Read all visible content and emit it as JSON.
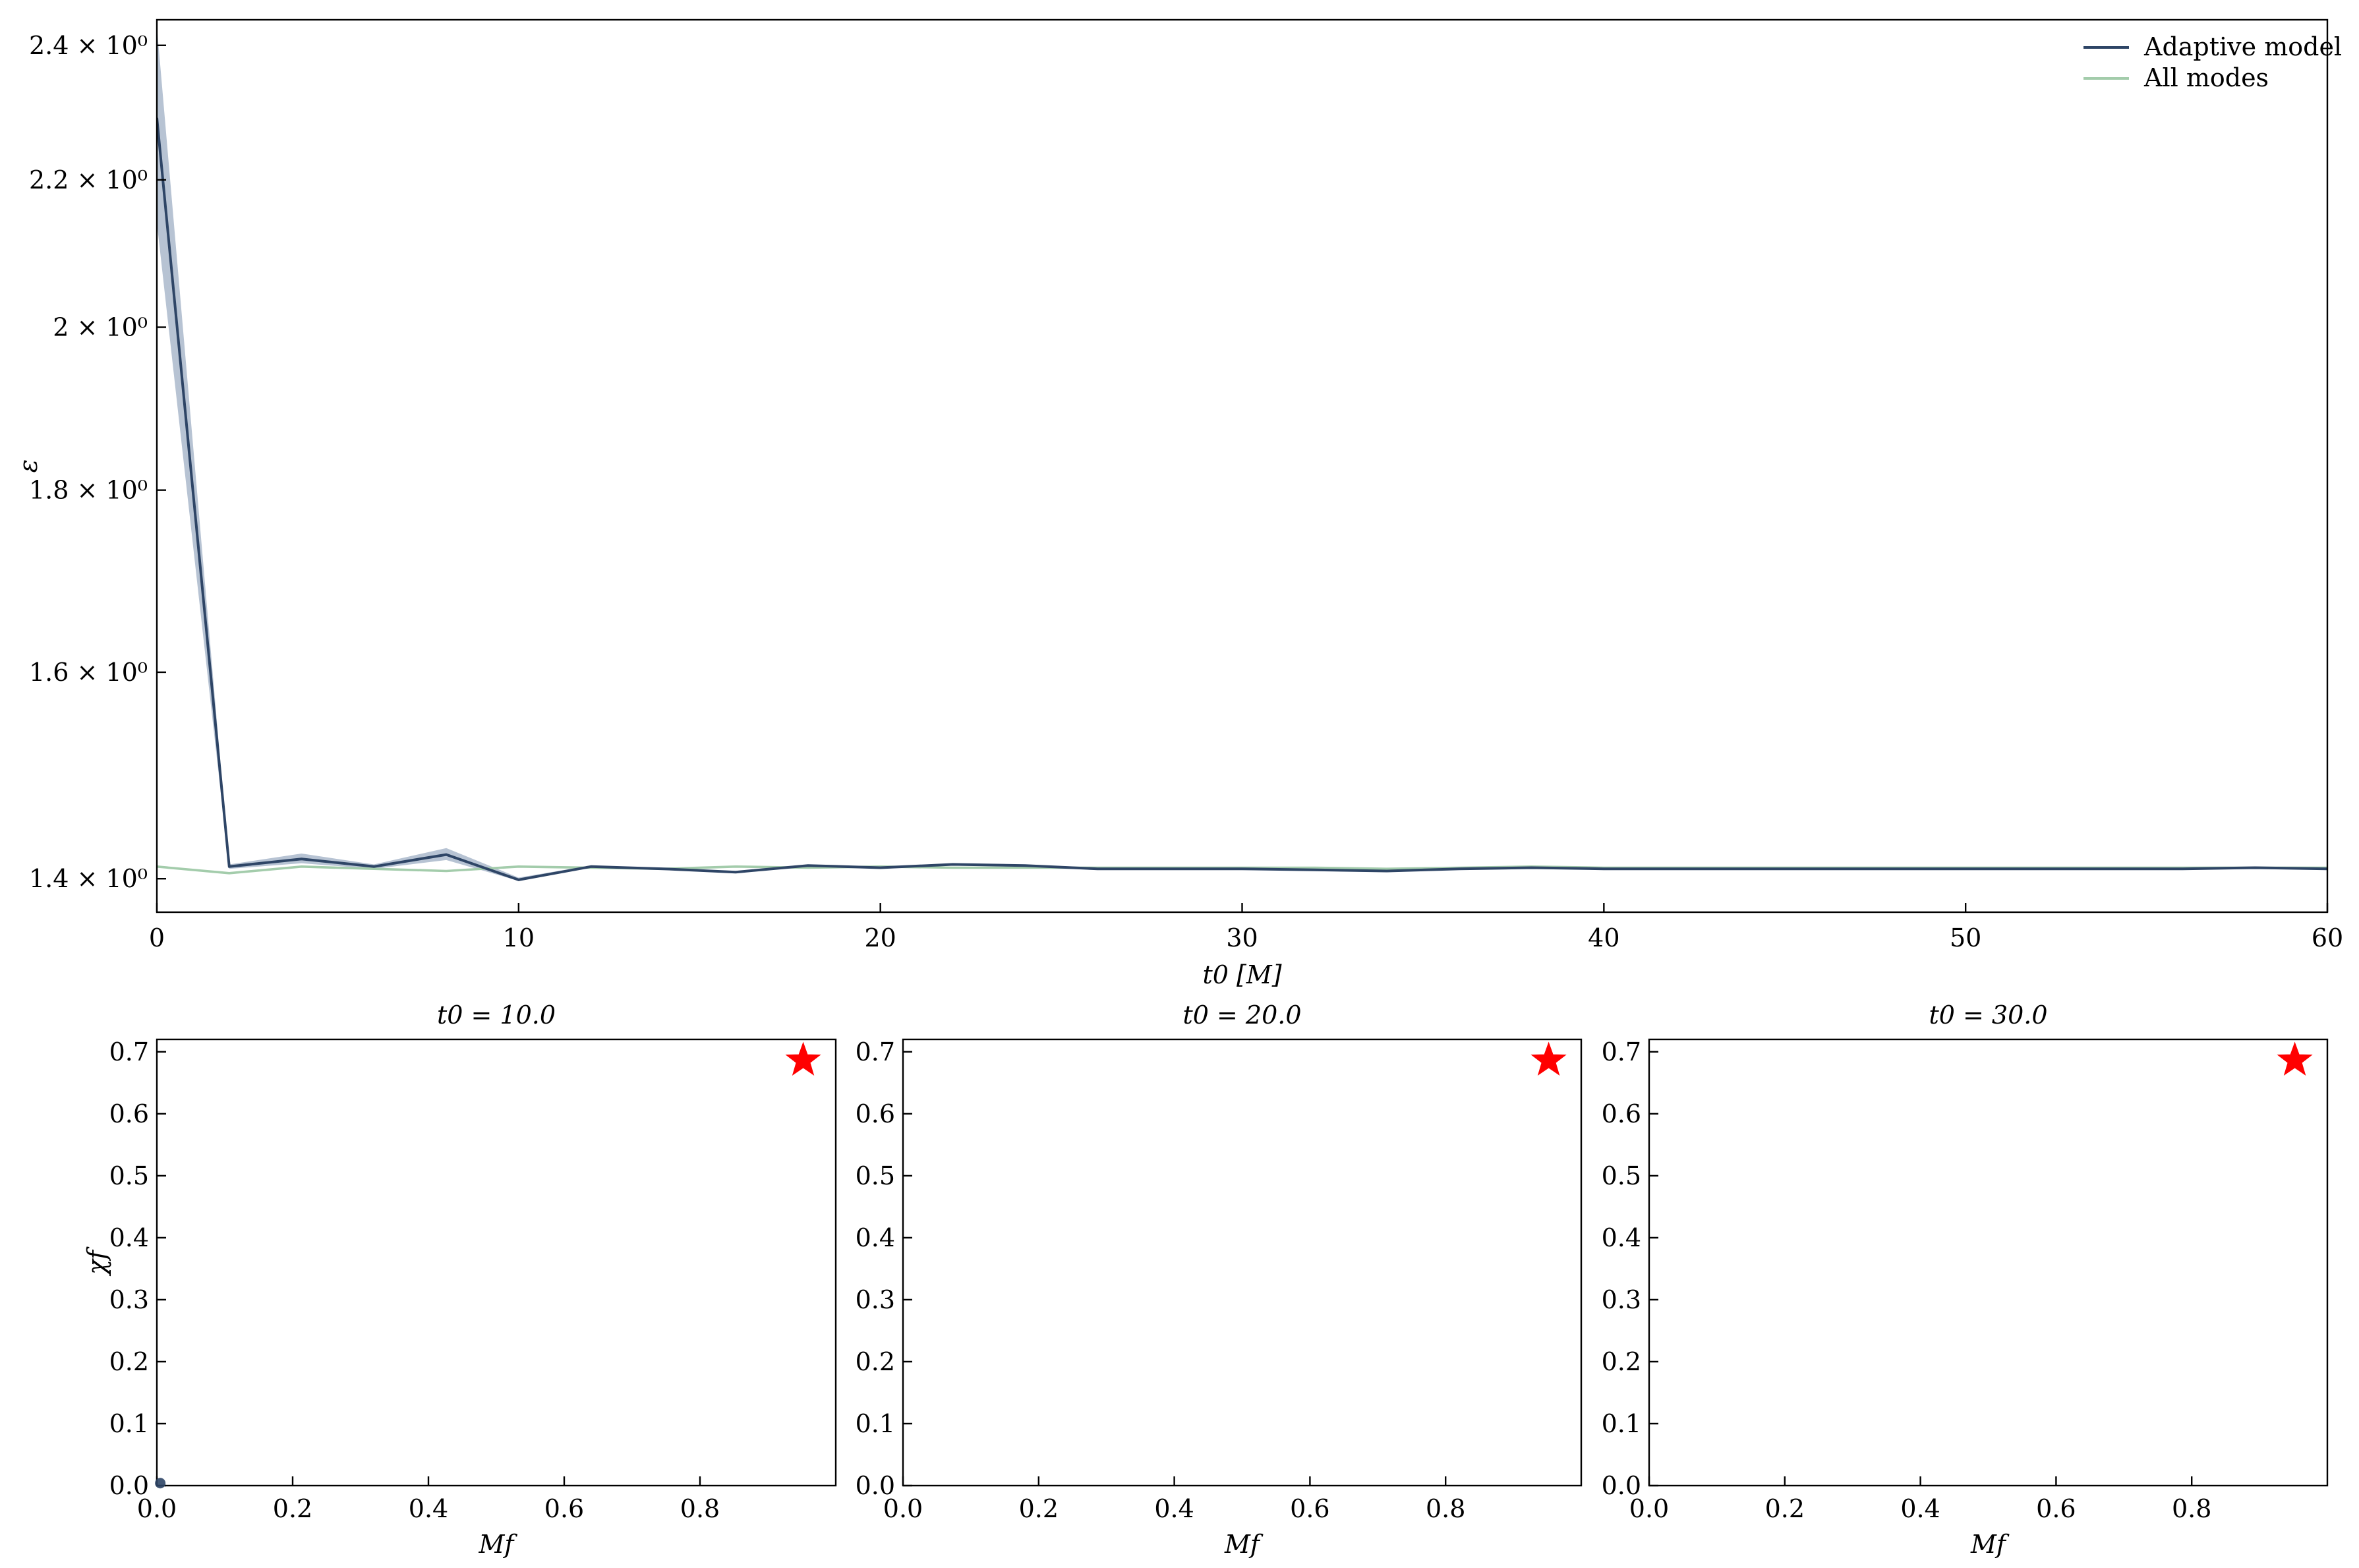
{
  "chart_data": [
    {
      "type": "line",
      "xlabel": "t0 [M]",
      "ylabel": "ε",
      "xlim": [
        0,
        60
      ],
      "ylim": [
        1.37,
        2.44
      ],
      "yscale": "log",
      "grid": false,
      "legend_position": "top-right",
      "xticks": [
        0,
        10,
        20,
        30,
        40,
        50,
        60
      ],
      "xtick_labels": [
        "0",
        "10",
        "20",
        "30",
        "40",
        "50",
        "60"
      ],
      "yticks": [
        1.4,
        1.6,
        1.8,
        2.0,
        2.2,
        2.4
      ],
      "ytick_labels": [
        "1.4 × 10⁰",
        "1.6 × 10⁰",
        "1.8 × 10⁰",
        "2 × 10⁰",
        "2.2 × 10⁰",
        "2.4 × 10⁰"
      ],
      "x": [
        0,
        2,
        4,
        6,
        8,
        10,
        12,
        14,
        16,
        18,
        20,
        22,
        24,
        26,
        28,
        30,
        32,
        34,
        36,
        38,
        40,
        42,
        44,
        46,
        48,
        50,
        52,
        54,
        56,
        58,
        60
      ],
      "series": [
        {
          "name": "Adaptive model",
          "color": "#2e4566",
          "band_color": "#9fafc4",
          "values": [
            2.29,
            1.411,
            1.418,
            1.411,
            1.422,
            1.399,
            1.411,
            1.409,
            1.406,
            1.412,
            1.41,
            1.413,
            1.412,
            1.409,
            1.409,
            1.409,
            1.408,
            1.407,
            1.409,
            1.41,
            1.409,
            1.409,
            1.409,
            1.409,
            1.409,
            1.409,
            1.409,
            1.409,
            1.409,
            1.41,
            1.409
          ],
          "lower": [
            2.14,
            1.409,
            1.414,
            1.409,
            1.417,
            1.398,
            1.41,
            1.408,
            1.405,
            1.411,
            1.409,
            1.412,
            1.411,
            1.408,
            1.408,
            1.408,
            1.407,
            1.406,
            1.408,
            1.409,
            1.408,
            1.408,
            1.408,
            1.408,
            1.408,
            1.408,
            1.408,
            1.408,
            1.408,
            1.409,
            1.408
          ],
          "upper": [
            2.43,
            1.413,
            1.423,
            1.413,
            1.428,
            1.401,
            1.412,
            1.41,
            1.407,
            1.413,
            1.411,
            1.414,
            1.413,
            1.41,
            1.41,
            1.41,
            1.409,
            1.408,
            1.41,
            1.411,
            1.41,
            1.41,
            1.41,
            1.41,
            1.41,
            1.41,
            1.41,
            1.41,
            1.41,
            1.411,
            1.41
          ]
        },
        {
          "name": "All modes",
          "color": "#a3ccab",
          "values": [
            1.411,
            1.405,
            1.411,
            1.409,
            1.407,
            1.411,
            1.41,
            1.409,
            1.411,
            1.41,
            1.411,
            1.41,
            1.41,
            1.41,
            1.41,
            1.41,
            1.41,
            1.409,
            1.41,
            1.411,
            1.41,
            1.41,
            1.41,
            1.41,
            1.41,
            1.41,
            1.41,
            1.41,
            1.41,
            1.41,
            1.41
          ]
        }
      ]
    },
    {
      "type": "scatter",
      "title": "t0 = 10.0",
      "xlabel": "Mf",
      "ylabel": "χf",
      "xlim": [
        0,
        1.0
      ],
      "ylim": [
        0,
        0.72
      ],
      "xticks": [
        0,
        0.2,
        0.4,
        0.6,
        0.8
      ],
      "xtick_labels": [
        "0.0",
        "0.2",
        "0.4",
        "0.6",
        "0.8"
      ],
      "yticks": [
        0,
        0.1,
        0.2,
        0.3,
        0.4,
        0.5,
        0.6,
        0.7
      ],
      "ytick_labels": [
        "0.0",
        "0.1",
        "0.2",
        "0.3",
        "0.4",
        "0.5",
        "0.6",
        "0.7"
      ],
      "points": [
        {
          "x": 0.005,
          "y": 0.004,
          "color": "#2e4566"
        }
      ],
      "true_value": {
        "x": 0.952,
        "y": 0.686,
        "color": "#ff0000",
        "marker": "star"
      }
    },
    {
      "type": "scatter",
      "title": "t0 = 20.0",
      "xlabel": "Mf",
      "ylabel": "",
      "xlim": [
        0,
        1.0
      ],
      "ylim": [
        0,
        0.72
      ],
      "xticks": [
        0,
        0.2,
        0.4,
        0.6,
        0.8
      ],
      "xtick_labels": [
        "0.0",
        "0.2",
        "0.4",
        "0.6",
        "0.8"
      ],
      "yticks": [
        0,
        0.1,
        0.2,
        0.3,
        0.4,
        0.5,
        0.6,
        0.7
      ],
      "ytick_labels": [
        "0.0",
        "0.1",
        "0.2",
        "0.3",
        "0.4",
        "0.5",
        "0.6",
        "0.7"
      ],
      "points": [],
      "true_value": {
        "x": 0.952,
        "y": 0.686,
        "color": "#ff0000",
        "marker": "star"
      }
    },
    {
      "type": "scatter",
      "title": "t0 = 30.0",
      "xlabel": "Mf",
      "ylabel": "",
      "xlim": [
        0,
        1.0
      ],
      "ylim": [
        0,
        0.72
      ],
      "xticks": [
        0,
        0.2,
        0.4,
        0.6,
        0.8
      ],
      "xtick_labels": [
        "0.0",
        "0.2",
        "0.4",
        "0.6",
        "0.8"
      ],
      "yticks": [
        0,
        0.1,
        0.2,
        0.3,
        0.4,
        0.5,
        0.6,
        0.7
      ],
      "ytick_labels": [
        "0.0",
        "0.1",
        "0.2",
        "0.3",
        "0.4",
        "0.5",
        "0.6",
        "0.7"
      ],
      "points": [],
      "true_value": {
        "x": 0.952,
        "y": 0.686,
        "color": "#ff0000",
        "marker": "star"
      }
    }
  ]
}
